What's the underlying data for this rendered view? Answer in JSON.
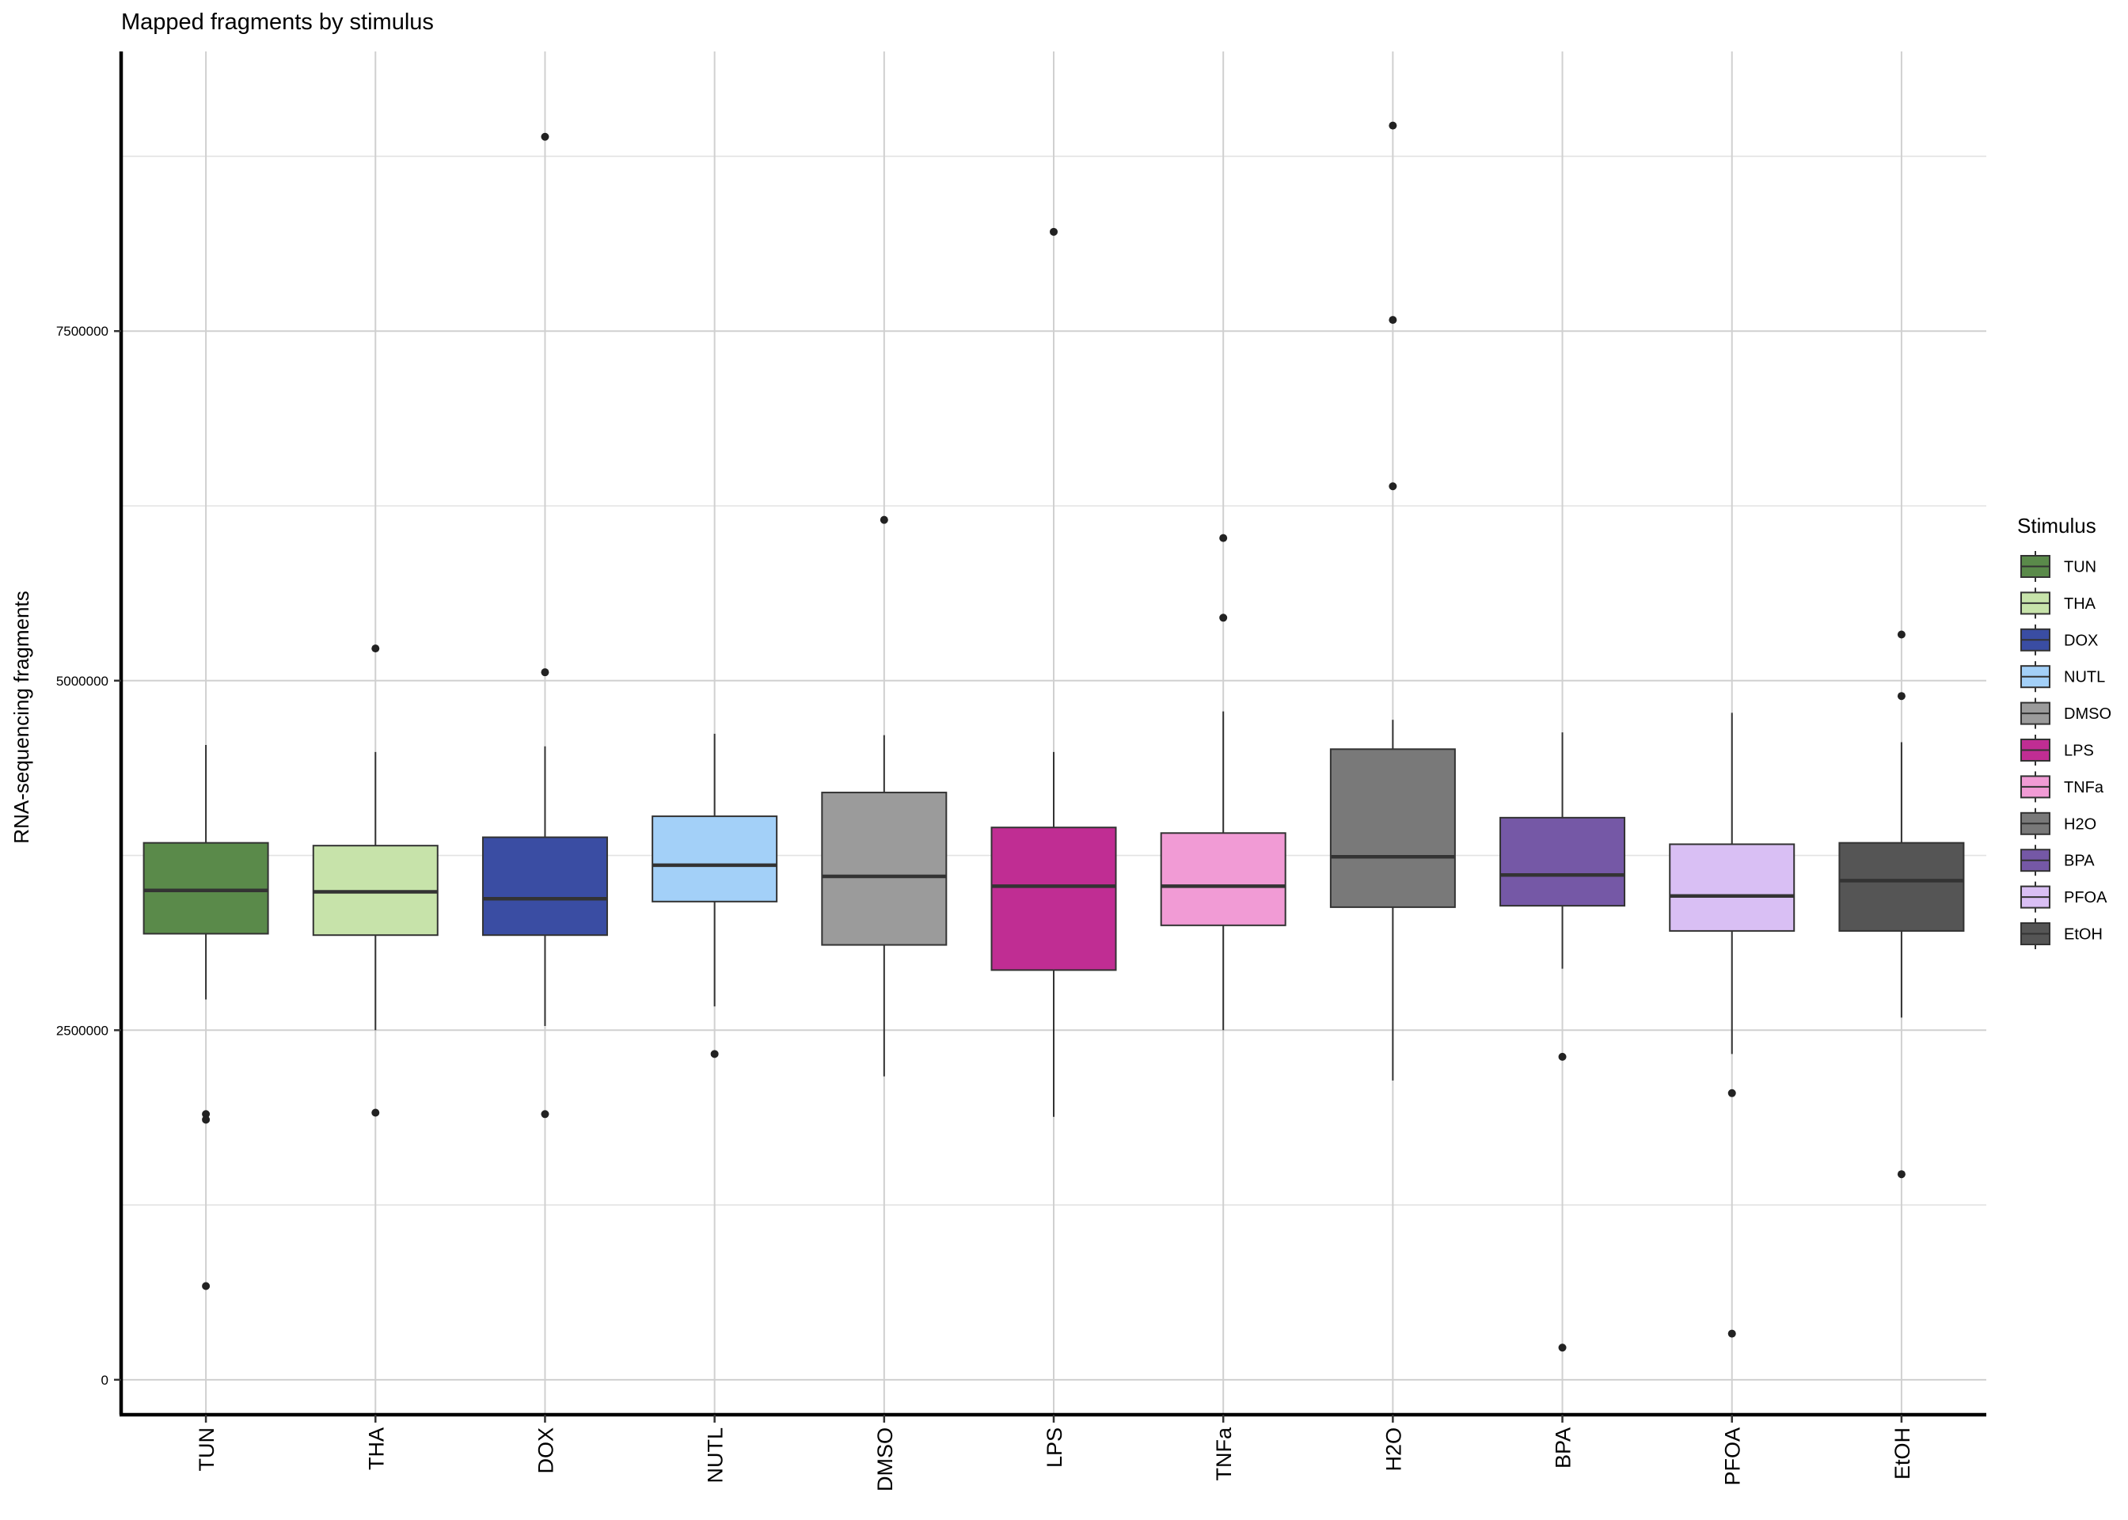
{
  "chart_data": {
    "type": "boxplot",
    "title": "Mapped fragments by stimulus",
    "xlabel": "",
    "ylabel": "RNA-sequencing fragments",
    "ylim": [
      -250000,
      9500000
    ],
    "yticks": [
      0,
      2500000,
      5000000,
      7500000
    ],
    "ytick_labels": [
      "0",
      "2500000",
      "5000000",
      "7500000"
    ],
    "yminor": [
      1250000,
      3750000,
      6250000,
      8750000
    ],
    "grid": true,
    "legend": {
      "title": "Stimulus",
      "position": "right"
    },
    "categories": [
      "TUN",
      "THA",
      "DOX",
      "NUTL",
      "DMSO",
      "LPS",
      "TNFa",
      "H2O",
      "BPA",
      "PFOA",
      "EtOH"
    ],
    "series": [
      {
        "name": "TUN",
        "color": "#5a8a4a",
        "q1": 3190000,
        "median": 3500000,
        "q3": 3840000,
        "whisker_low": 2720000,
        "whisker_high": 4540000,
        "outliers": [
          1900000,
          1860000,
          670000
        ]
      },
      {
        "name": "THA",
        "color": "#c7e3aa",
        "q1": 3180000,
        "median": 3490000,
        "q3": 3820000,
        "whisker_low": 2500000,
        "whisker_high": 4490000,
        "outliers": [
          5230000,
          1910000
        ]
      },
      {
        "name": "DOX",
        "color": "#3a4da3",
        "q1": 3180000,
        "median": 3440000,
        "q3": 3880000,
        "whisker_low": 2530000,
        "whisker_high": 4530000,
        "outliers": [
          8890000,
          5060000,
          1900000
        ]
      },
      {
        "name": "NUTL",
        "color": "#a3d0f8",
        "q1": 3420000,
        "median": 3680000,
        "q3": 4030000,
        "whisker_low": 2670000,
        "whisker_high": 4620000,
        "outliers": [
          2330000
        ]
      },
      {
        "name": "DMSO",
        "color": "#9b9b9b",
        "q1": 3110000,
        "median": 3600000,
        "q3": 4200000,
        "whisker_low": 2170000,
        "whisker_high": 4610000,
        "outliers": [
          6150000
        ]
      },
      {
        "name": "LPS",
        "color": "#c02d93",
        "q1": 2930000,
        "median": 3530000,
        "q3": 3950000,
        "whisker_low": 1880000,
        "whisker_high": 4490000,
        "outliers": [
          8210000
        ]
      },
      {
        "name": "TNFa",
        "color": "#f19bd5",
        "q1": 3250000,
        "median": 3530000,
        "q3": 3910000,
        "whisker_low": 2500000,
        "whisker_high": 4780000,
        "outliers": [
          6020000,
          5450000
        ]
      },
      {
        "name": "H2O",
        "color": "#797979",
        "q1": 3380000,
        "median": 3740000,
        "q3": 4510000,
        "whisker_low": 2140000,
        "whisker_high": 4720000,
        "outliers": [
          8970000,
          7580000,
          6390000
        ]
      },
      {
        "name": "BPA",
        "color": "#7558a6",
        "q1": 3390000,
        "median": 3610000,
        "q3": 4020000,
        "whisker_low": 2940000,
        "whisker_high": 4630000,
        "outliers": [
          2310000,
          230000
        ]
      },
      {
        "name": "PFOA",
        "color": "#d9bff4",
        "q1": 3210000,
        "median": 3460000,
        "q3": 3830000,
        "whisker_low": 2330000,
        "whisker_high": 4770000,
        "outliers": [
          2050000,
          330000
        ]
      },
      {
        "name": "EtOH",
        "color": "#555555",
        "q1": 3210000,
        "median": 3570000,
        "q3": 3840000,
        "whisker_low": 2590000,
        "whisker_high": 4560000,
        "outliers": [
          5330000,
          4890000,
          1470000
        ]
      }
    ]
  }
}
